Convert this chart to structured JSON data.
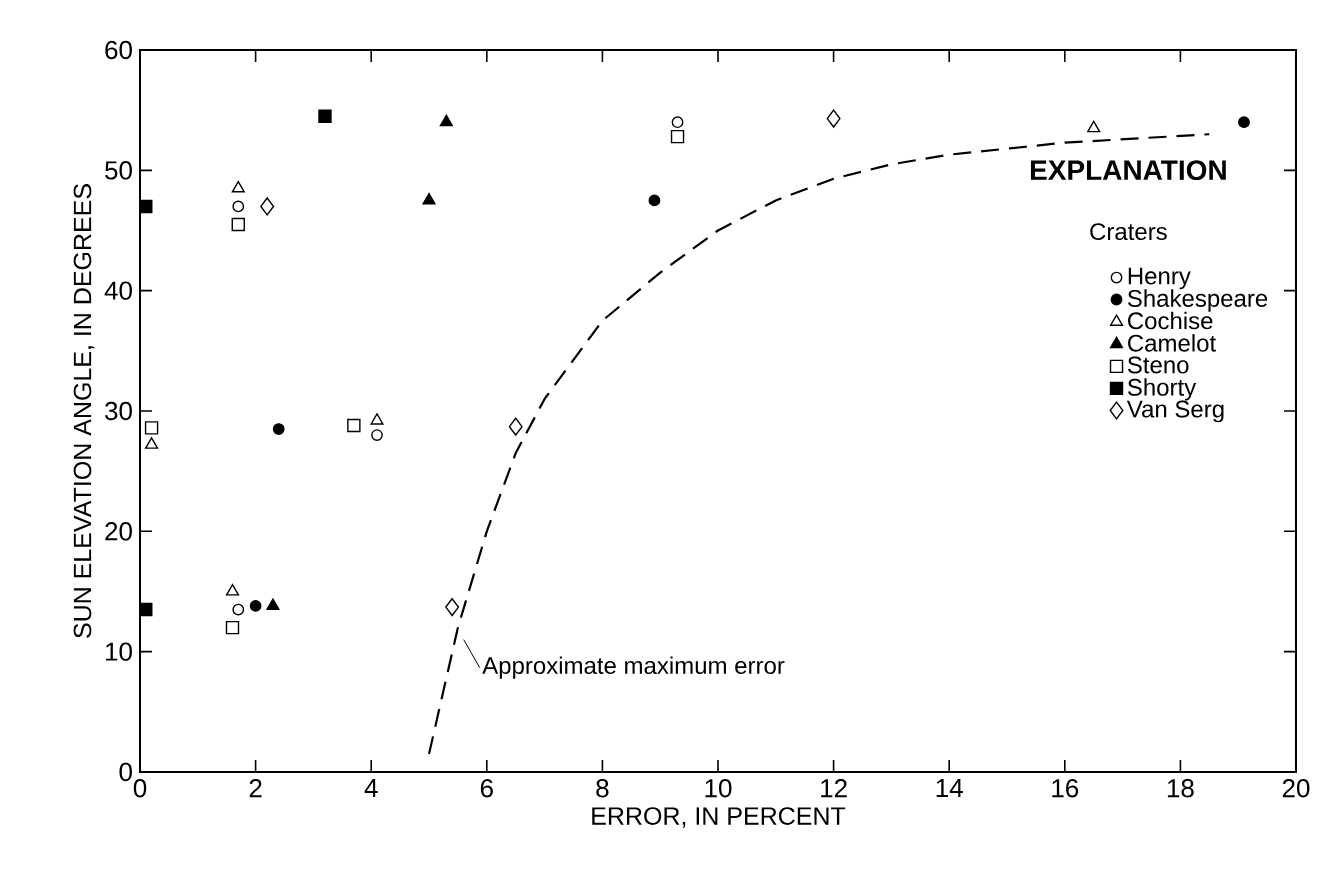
{
  "chart_data": {
    "type": "scatter",
    "xlabel": "ERROR, IN PERCENT",
    "ylabel": "SUN ELEVATION ANGLE, IN DEGREES",
    "legend_title": "Craters",
    "legend": "right",
    "xlim": [
      0,
      20
    ],
    "ylim": [
      0,
      60
    ],
    "xticks": [
      0,
      2,
      4,
      6,
      8,
      10,
      12,
      14,
      16,
      18,
      20
    ],
    "yticks": [
      0,
      10,
      20,
      30,
      40,
      50,
      60
    ],
    "grid": false,
    "annotations": [
      "EXPLANATION",
      {
        "text": "Approximate maximum error",
        "x": 5.6,
        "y": 11
      }
    ],
    "series": [
      {
        "name": "Henry",
        "color": "#ffffff",
        "marker": "circle",
        "x": [
          1.7,
          4.1,
          1.7,
          9.3
        ],
        "values": [
          47,
          28,
          13.5,
          54
        ]
      },
      {
        "name": "Shakespeare",
        "color": "#000000",
        "marker": "circle",
        "x": [
          2.4,
          8.9,
          19.1,
          2.0
        ],
        "values": [
          28.5,
          47.5,
          54,
          13.8
        ]
      },
      {
        "name": "Cochise",
        "color": "#ffffff",
        "marker": "triangle",
        "x": [
          1.7,
          0.2,
          4.1,
          1.6,
          16.5
        ],
        "values": [
          48.5,
          27.2,
          29.2,
          15,
          53.5
        ]
      },
      {
        "name": "Camelot",
        "color": "#000000",
        "marker": "triangle",
        "x": [
          5.3,
          5.0,
          2.3
        ],
        "values": [
          54,
          47.5,
          13.8
        ]
      },
      {
        "name": "Steno",
        "color": "#ffffff",
        "marker": "square",
        "x": [
          1.7,
          0.2,
          3.7,
          1.6,
          9.3
        ],
        "values": [
          45.5,
          28.6,
          28.8,
          12,
          52.8
        ]
      },
      {
        "name": "Shorty",
        "color": "#000000",
        "marker": "square",
        "x": [
          0.1,
          3.2,
          0.1
        ],
        "values": [
          47,
          54.5,
          13.5
        ]
      },
      {
        "name": "Van Serg",
        "color": "#ffffff",
        "marker": "diamond",
        "x": [
          2.2,
          6.5,
          5.4,
          12
        ],
        "values": [
          47,
          28.7,
          13.7,
          54.3
        ]
      },
      {
        "type": "line",
        "color": "#000000",
        "line_style": "dashed",
        "marker": "none",
        "x": [
          5.0,
          5.5,
          6,
          6.5,
          7,
          8,
          9,
          10,
          11,
          12,
          13,
          14,
          16,
          18.5
        ],
        "values": [
          1.5,
          12,
          20,
          26.5,
          31,
          37.5,
          41.5,
          45,
          47.5,
          49.3,
          50.5,
          51.3,
          52.3,
          53
        ]
      }
    ]
  }
}
